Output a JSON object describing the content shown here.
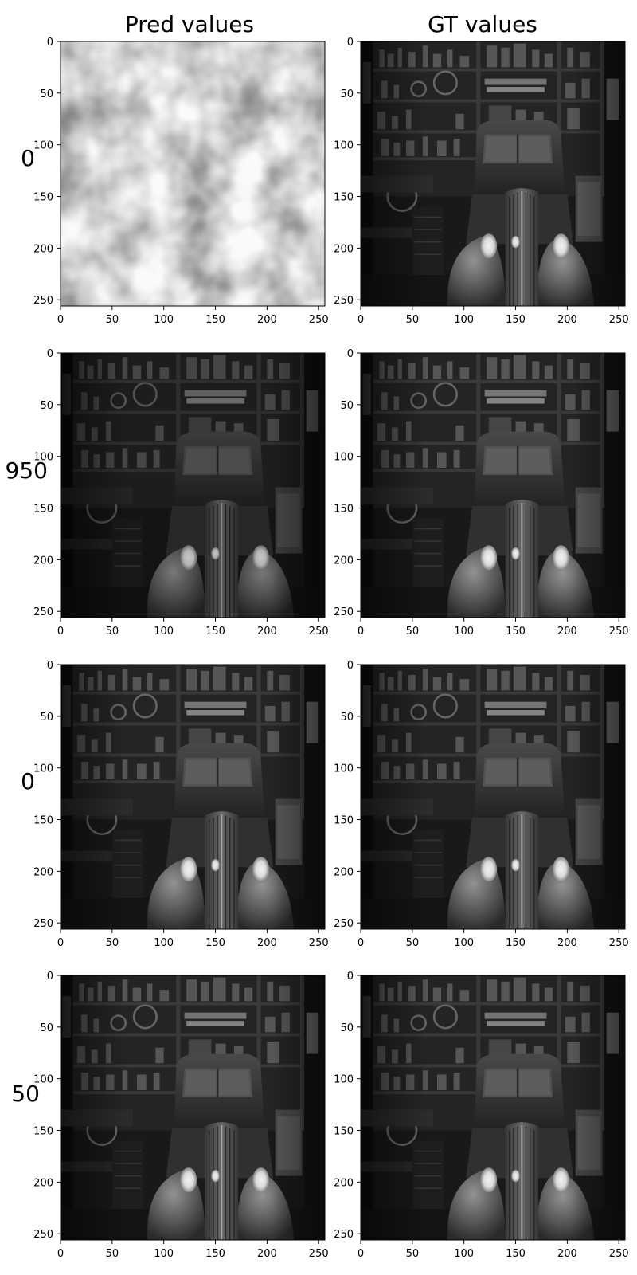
{
  "columns": [
    "Pred values",
    "GT values"
  ],
  "rows": [
    {
      "label": "0",
      "pred_image": "noisy-grayscale-blob-texture",
      "gt_image": "garage-vintage-truck-grayscale-photo"
    },
    {
      "label": "950",
      "pred_image": "garage-vintage-truck-reconstruction-dark",
      "gt_image": "garage-vintage-truck-grayscale-photo"
    },
    {
      "label": "0",
      "pred_image": "garage-vintage-truck-reconstruction",
      "gt_image": "garage-vintage-truck-grayscale-photo"
    },
    {
      "label": "50",
      "pred_image": "garage-vintage-truck-reconstruction",
      "gt_image": "garage-vintage-truck-grayscale-photo"
    }
  ],
  "axes": {
    "x_ticks": [
      "0",
      "50",
      "100",
      "150",
      "200",
      "250"
    ],
    "y_ticks": [
      "0",
      "50",
      "100",
      "150",
      "200",
      "250"
    ],
    "x_tick_values": [
      0,
      50,
      100,
      150,
      200,
      250
    ],
    "y_tick_values": [
      0,
      50,
      100,
      150,
      200,
      250
    ],
    "extent": [
      0,
      256
    ]
  },
  "colors": {
    "background": "#ffffff",
    "axes": "#000000",
    "image_dark": "#141414",
    "image_light": "#d8d8d8"
  }
}
